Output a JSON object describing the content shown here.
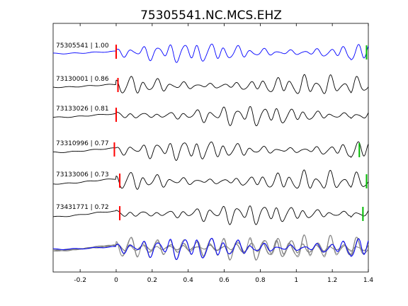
{
  "chart_data": {
    "type": "line",
    "title": "75305541.NC.MCS.EHZ",
    "xlabel": "",
    "ylabel": "",
    "xlim": [
      -0.35,
      1.4
    ],
    "xticks": [
      "-0.2",
      "0",
      "0.2",
      "0.4",
      "0.6",
      "0.8",
      "1",
      "1.2",
      "1.4"
    ],
    "xtick_values": [
      -0.2,
      0,
      0.2,
      0.4,
      0.6,
      0.8,
      1.0,
      1.2,
      1.4
    ],
    "grid": false,
    "legend": "none",
    "colors": {
      "reference": "#0000ff",
      "trace": "#000000",
      "stack": "#808080",
      "p_pick": "#ff0000",
      "s_pick": "#00bb00"
    },
    "series": [
      {
        "name": "75305541 | 1.00",
        "p_pick": 0.0,
        "s_pick": 1.39,
        "color": "#0000ff"
      },
      {
        "name": "73130001 | 0.86",
        "p_pick": 0.01,
        "s_pick": null,
        "color": "#000000"
      },
      {
        "name": "73133026 | 0.81",
        "p_pick": 0.0,
        "s_pick": null,
        "color": "#000000"
      },
      {
        "name": "73310996 | 0.77",
        "p_pick": -0.01,
        "s_pick": 1.35,
        "color": "#000000"
      },
      {
        "name": "73133006 | 0.73",
        "p_pick": 0.02,
        "s_pick": 1.39,
        "color": "#000000"
      },
      {
        "name": "73431771 | 0.72",
        "p_pick": 0.02,
        "s_pick": 1.37,
        "color": "#000000"
      }
    ],
    "stack": {
      "name": "",
      "traces": 6
    }
  }
}
